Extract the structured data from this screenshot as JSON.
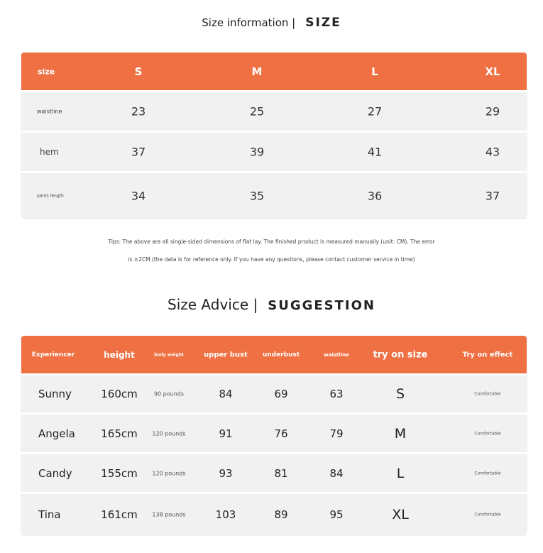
{
  "size_section": {
    "title": "Size information |",
    "title_en": "SIZE",
    "headers": [
      "size",
      "S",
      "M",
      "L",
      "XL"
    ],
    "rows": [
      {
        "label": "waistline",
        "values": [
          "23",
          "25",
          "27",
          "29"
        ]
      },
      {
        "label": "hem",
        "values": [
          "37",
          "39",
          "41",
          "43"
        ]
      },
      {
        "label": "pants length",
        "values": [
          "34",
          "35",
          "36",
          "37"
        ]
      }
    ],
    "tips_line1": "Tips: The above are all single-sided dimensions of flat lay. The finished product is measured manually (unit: CM). The error",
    "tips_line2": "is ±2CM (the data is for reference only. If you have any questions, please contact customer service in time)"
  },
  "advice_section": {
    "title": "Size Advice |",
    "title_en": "SUGGESTION",
    "headers": [
      "Experiencer",
      "height",
      "body weight",
      "upper bust",
      "underbust",
      "waistline",
      "try on size",
      "Try on effect"
    ],
    "rows": [
      [
        "Sunny",
        "160cm",
        "90 pounds",
        "84",
        "69",
        "63",
        "S",
        "Comfortable"
      ],
      [
        "Angela",
        "165cm",
        "120 pounds",
        "91",
        "76",
        "79",
        "M",
        "Comfortable"
      ],
      [
        "Candy",
        "155cm",
        "120 pounds",
        "93",
        "81",
        "84",
        "L",
        "Comfortable"
      ],
      [
        "Tina",
        "161cm",
        "138 pounds",
        "103",
        "89",
        "95",
        "XL",
        "Comfortable"
      ]
    ]
  },
  "colors": {
    "accent": "#ee7043",
    "row_bg": "#f1f1f1"
  }
}
